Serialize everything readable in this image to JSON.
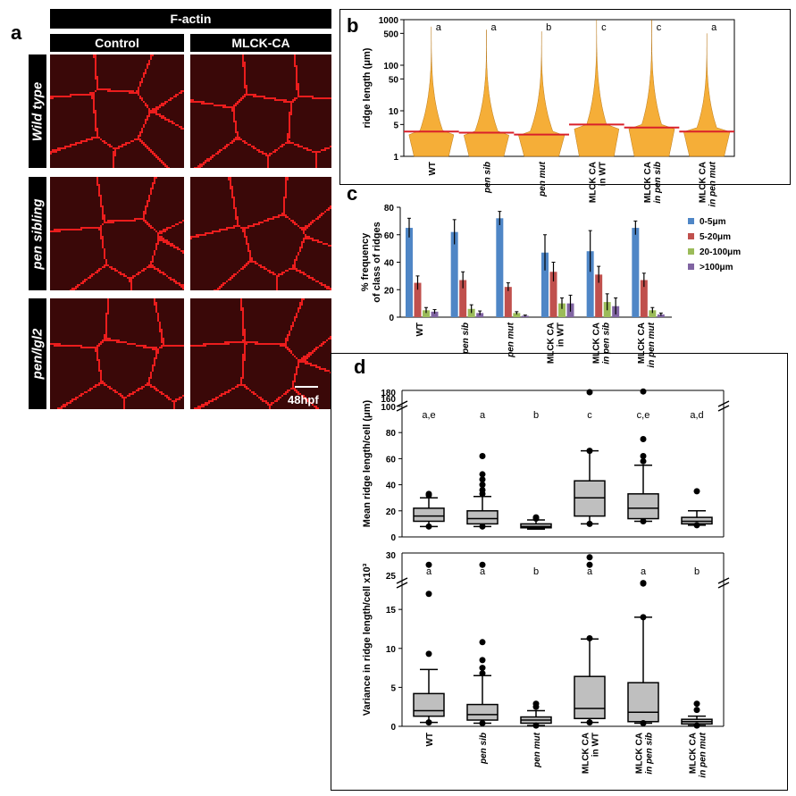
{
  "panel_a": {
    "letter": "a",
    "header": "F-actin",
    "columns": [
      "Control",
      "MLCK-CA"
    ],
    "rows": [
      "Wild type",
      "pen sibling",
      "pen/lgl2"
    ],
    "scale_label": "48hpf"
  },
  "panel_b": {
    "letter": "b"
  },
  "panel_c": {
    "letter": "c"
  },
  "panel_d": {
    "letter": "d"
  },
  "colors": {
    "violin": "#f5a623",
    "median_line": "#d9202a",
    "blue": "#4f86c6",
    "red": "#c0504d",
    "green": "#9bbb59",
    "purple": "#8064a2",
    "box": "#bfbfbf",
    "cell_edge": "#ff2020"
  },
  "chart_data": [
    {
      "id": "b",
      "type": "violin",
      "ylabel": "ridge length (μm)",
      "yscale": "log",
      "ylim": [
        1,
        1000
      ],
      "yticks": [
        "1000",
        "500",
        "100",
        "50",
        "10",
        "5",
        "1"
      ],
      "categories": [
        "WT",
        "pen sib",
        "pen mut",
        "MLCK CA in WT",
        "MLCK CA in pen sib",
        "MLCK CA in pen mut"
      ],
      "medians": [
        3.5,
        3.3,
        3.0,
        5.0,
        4.3,
        3.5
      ],
      "max": [
        700,
        600,
        550,
        1000,
        1000,
        500
      ],
      "significance": [
        "a",
        "a",
        "b",
        "c",
        "c",
        "a"
      ]
    },
    {
      "id": "c",
      "type": "bar",
      "ylabel": "% frequency of class of ridges",
      "ylim": [
        0,
        80
      ],
      "yticks": [
        "0",
        "20",
        "40",
        "60",
        "80"
      ],
      "categories": [
        "WT",
        "pen sib",
        "pen mut",
        "MLCK CA in WT",
        "MLCK CA in pen sib",
        "MLCK CA in pen mut"
      ],
      "series": [
        {
          "name": "0-5μm",
          "values": [
            65,
            62,
            72,
            47,
            48,
            65
          ],
          "err": [
            7,
            9,
            5,
            13,
            15,
            5
          ]
        },
        {
          "name": "5-20μm",
          "values": [
            25,
            27,
            22,
            33,
            31,
            27
          ],
          "err": [
            5,
            6,
            3,
            7,
            6,
            5
          ]
        },
        {
          "name": "20-100μm",
          "values": [
            5,
            6,
            3,
            10,
            11,
            5
          ],
          "err": [
            2,
            3,
            1,
            4,
            6,
            2
          ]
        },
        {
          "name": ">100μm",
          "values": [
            4,
            3,
            1,
            10,
            8,
            2
          ],
          "err": [
            1.5,
            1.5,
            0.5,
            6,
            6,
            1
          ]
        }
      ],
      "legend_position": "right"
    },
    {
      "id": "d-top",
      "type": "box",
      "ylabel": "Mean ridge length/cell (μm)",
      "ylim": [
        0,
        100
      ],
      "yticks": [
        "0",
        "20",
        "40",
        "60",
        "80",
        "100"
      ],
      "break_ticks": [
        "160",
        "180"
      ],
      "categories": [
        "WT",
        "pen sib",
        "pen mut",
        "MLCK CA in WT",
        "MLCK CA in pen sib",
        "MLCK CA in pen mut"
      ],
      "boxes": [
        {
          "whislo": 8,
          "q1": 12,
          "med": 16,
          "q3": 22,
          "whishi": 30,
          "fliers": [
            8,
            32,
            33
          ]
        },
        {
          "whislo": 8,
          "q1": 10,
          "med": 14,
          "q3": 20,
          "whishi": 31,
          "fliers": [
            8,
            33,
            36,
            40,
            44,
            48,
            62
          ]
        },
        {
          "whislo": 6,
          "q1": 7,
          "med": 8,
          "q3": 10,
          "whishi": 13,
          "fliers": [
            14,
            15
          ]
        },
        {
          "whislo": 10,
          "q1": 16,
          "med": 30,
          "q3": 43,
          "whishi": 66,
          "fliers": [
            10,
            66,
            180
          ]
        },
        {
          "whislo": 12,
          "q1": 14,
          "med": 22,
          "q3": 33,
          "whishi": 55,
          "fliers": [
            12,
            58,
            62,
            75,
            182
          ]
        },
        {
          "whislo": 9,
          "q1": 10,
          "med": 12,
          "q3": 15,
          "whishi": 20,
          "fliers": [
            9,
            35
          ]
        }
      ],
      "significance": [
        "a,e",
        "a",
        "b",
        "c",
        "c,e",
        "a,d"
      ]
    },
    {
      "id": "d-bottom",
      "type": "box",
      "ylabel": "Variance in ridge length/cell x10³",
      "ylim": [
        0,
        18
      ],
      "yticks": [
        "0",
        "5",
        "10",
        "15"
      ],
      "break_ticks": [
        "25",
        "30"
      ],
      "categories": [
        "WT",
        "pen sib",
        "pen mut",
        "MLCK CA in WT",
        "MLCK CA in pen sib",
        "MLCK CA in pen mut"
      ],
      "boxes": [
        {
          "whislo": 0.5,
          "q1": 1.3,
          "med": 2.0,
          "q3": 4.2,
          "whishi": 7.3,
          "fliers": [
            0.5,
            9.3,
            17,
            26
          ]
        },
        {
          "whislo": 0.4,
          "q1": 0.8,
          "med": 1.5,
          "q3": 2.8,
          "whishi": 6.5,
          "fliers": [
            0.4,
            6.8,
            7.5,
            8.5,
            10.8,
            26
          ]
        },
        {
          "whislo": 0.1,
          "q1": 0.4,
          "med": 0.8,
          "q3": 1.2,
          "whishi": 2.0,
          "fliers": [
            0.1,
            2.5,
            2.9
          ]
        },
        {
          "whislo": 0.5,
          "q1": 1.0,
          "med": 2.3,
          "q3": 6.4,
          "whishi": 11.2,
          "fliers": [
            0.5,
            11.3,
            26,
            29
          ]
        },
        {
          "whislo": 0.4,
          "q1": 0.6,
          "med": 1.8,
          "q3": 5.6,
          "whishi": 14,
          "fliers": [
            0.4,
            14,
            18.5,
            18.7
          ]
        },
        {
          "whislo": 0.1,
          "q1": 0.3,
          "med": 0.6,
          "q3": 0.9,
          "whishi": 1.3,
          "fliers": [
            0.1,
            2.1,
            2.9
          ]
        }
      ],
      "significance": [
        "a",
        "a",
        "b",
        "a",
        "a",
        "b"
      ]
    }
  ]
}
